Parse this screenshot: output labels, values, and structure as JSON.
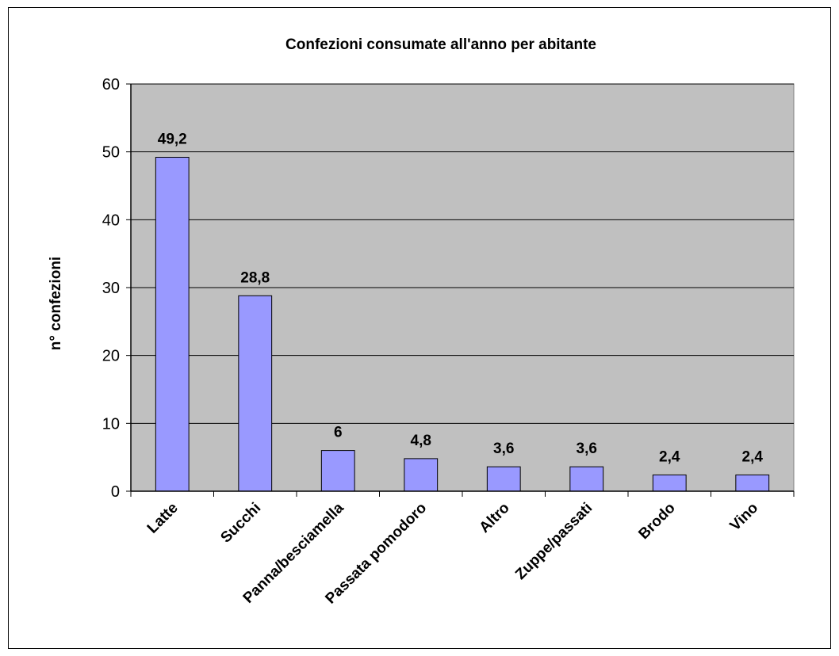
{
  "chart_data": {
    "type": "bar",
    "title": "Confezioni consumate all'anno  per abitante",
    "xlabel": "",
    "ylabel": "n° confezioni",
    "categories": [
      "Latte",
      "Succhi",
      "Panna/besciamella",
      "Passata pomodoro",
      "Altro",
      "Zuppe/passati",
      "Brodo",
      "Vino"
    ],
    "values": [
      49.2,
      28.8,
      6,
      4.8,
      3.6,
      3.6,
      2.4,
      2.4
    ],
    "data_labels": [
      "49,2",
      "28,8",
      "6",
      "4,8",
      "3,6",
      "3,6",
      "2,4",
      "2,4"
    ],
    "ylim": [
      0,
      60
    ],
    "yticks": [
      0,
      10,
      20,
      30,
      40,
      50,
      60
    ],
    "grid": true,
    "legend": "none",
    "colors": {
      "bar": "#9999ff",
      "plot_background": "#c0c0c0",
      "gridline": "#000000"
    }
  }
}
